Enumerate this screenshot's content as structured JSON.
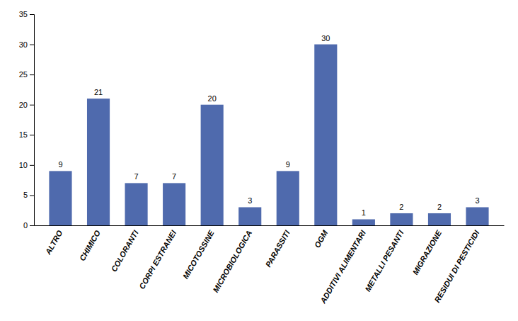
{
  "chart_data": {
    "type": "bar",
    "categories": [
      "ALTRO",
      "CHIMICO",
      "COLORANTI",
      "CORPI ESTRANEI",
      "MICOTOSSINE",
      "MICROBIOLOGICA",
      "PARASSITI",
      "OGM",
      "ADDITIVI ALIMENTARI",
      "METALLI PESANTI",
      "MIGRAZIONE",
      "RESIDUI DI PESTICIDI"
    ],
    "values": [
      9,
      21,
      7,
      7,
      20,
      3,
      9,
      30,
      1,
      2,
      2,
      3
    ],
    "color": "#4f6aad",
    "ylim": [
      0,
      35
    ],
    "yticks": [
      0,
      5,
      10,
      15,
      20,
      25,
      30,
      35
    ],
    "grid": false,
    "data_labels": true
  }
}
